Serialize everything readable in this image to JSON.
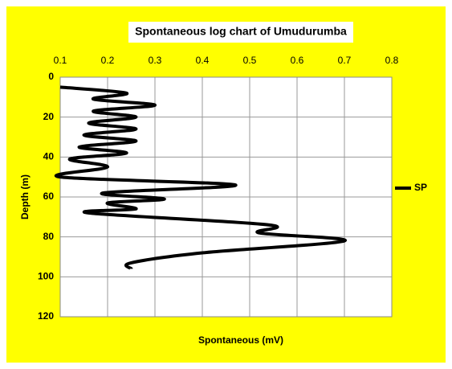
{
  "chart_data": {
    "type": "line",
    "title": "Spontaneous log chart of Umudurumba",
    "x_label": "Spontaneous (mV)",
    "y_label": "Depth (m)",
    "xlim": [
      0.1,
      0.8
    ],
    "xticks": [
      0.1,
      0.2,
      0.3,
      0.4,
      0.5,
      0.6,
      0.7,
      0.8
    ],
    "ylim": [
      0,
      120
    ],
    "yticks": [
      0,
      20,
      40,
      60,
      80,
      100,
      120
    ],
    "y_inverted": true,
    "x_axis_position": "top",
    "grid": true,
    "legend": "right",
    "background": "#ffff00",
    "series": [
      {
        "name": "SP",
        "color": "#000000",
        "x": [
          0.1,
          0.24,
          0.17,
          0.3,
          0.17,
          0.26,
          0.16,
          0.26,
          0.15,
          0.26,
          0.14,
          0.24,
          0.12,
          0.2,
          0.1,
          0.47,
          0.19,
          0.32,
          0.2,
          0.26,
          0.16,
          0.54,
          0.52,
          0.7,
          0.4,
          0.25,
          0.25
        ],
        "values": [
          5,
          8,
          11,
          14,
          17,
          20,
          23,
          26,
          29,
          32,
          35,
          38,
          41,
          45,
          50,
          54,
          58,
          61,
          63,
          66,
          68,
          74,
          78,
          82,
          88,
          93,
          96
        ]
      }
    ]
  }
}
